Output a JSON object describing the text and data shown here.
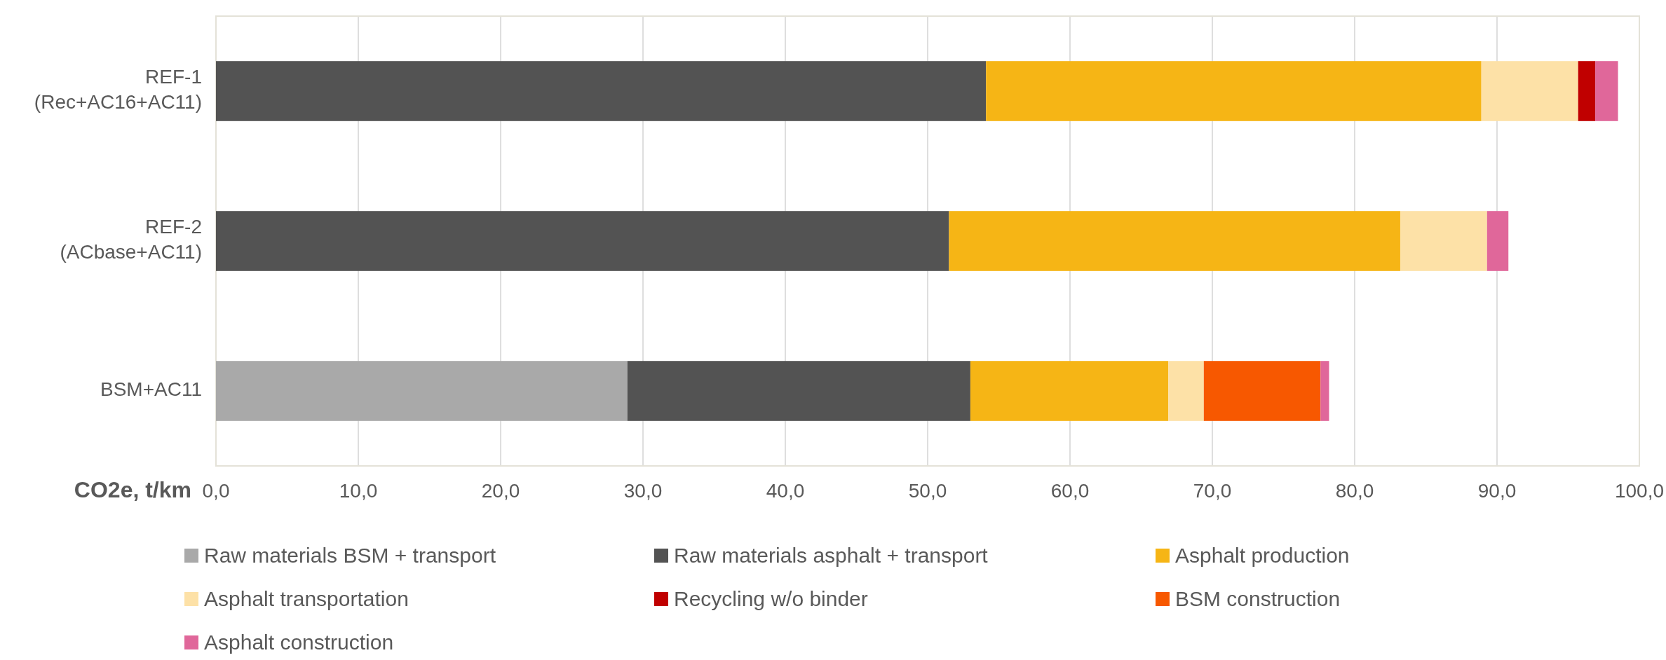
{
  "chart_data": {
    "type": "bar",
    "orientation": "horizontal",
    "stacked": true,
    "xlabel": "CO2e, t/km",
    "categories": [
      "REF-1\n(Rec+AC16+AC11)",
      "REF-2\n(ACbase+AC11)",
      "BSM+AC11"
    ],
    "series": [
      {
        "name": "Raw materials BSM + transport",
        "color": "#a9a9a9",
        "values": [
          null,
          null,
          28.9
        ]
      },
      {
        "name": "Raw materials asphalt + transport",
        "color": "#535353",
        "values": [
          54.1,
          51.5,
          24.1
        ]
      },
      {
        "name": "Asphalt production",
        "color": "#f6b515",
        "values": [
          34.8,
          31.7,
          13.9
        ]
      },
      {
        "name": "Asphalt transportation",
        "color": "#fde1a7",
        "values": [
          6.8,
          6.1,
          2.5
        ]
      },
      {
        "name": "Recycling w/o binder",
        "color": "#c00000",
        "values": [
          1.2,
          null,
          null
        ]
      },
      {
        "name": "BSM construction",
        "color": "#f75800",
        "values": [
          null,
          null,
          8.2
        ]
      },
      {
        "name": "Asphalt construction",
        "color": "#e0679a",
        "values": [
          1.6,
          1.5,
          0.6
        ]
      }
    ],
    "xlim": [
      0,
      100
    ],
    "xticks": [
      {
        "value": 0,
        "label": "0,0"
      },
      {
        "value": 10,
        "label": "10,0"
      },
      {
        "value": 20,
        "label": "20,0"
      },
      {
        "value": 30,
        "label": "30,0"
      },
      {
        "value": 40,
        "label": "40,0"
      },
      {
        "value": 50,
        "label": "50,0"
      },
      {
        "value": 60,
        "label": "60,0"
      },
      {
        "value": 70,
        "label": "70,0"
      },
      {
        "value": 80,
        "label": "80,0"
      },
      {
        "value": 90,
        "label": "90,0"
      },
      {
        "value": 100,
        "label": "100,0"
      }
    ],
    "grid": "x",
    "legend": "bottom"
  }
}
